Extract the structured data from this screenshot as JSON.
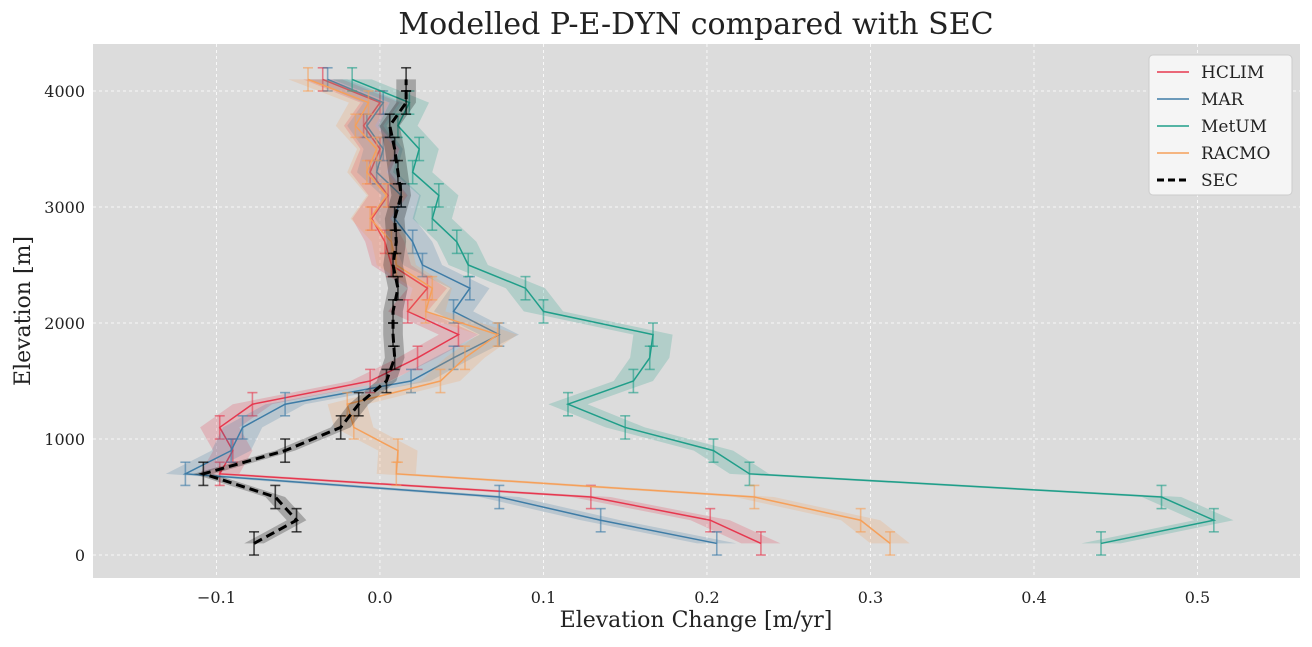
{
  "chart_data": {
    "type": "line",
    "title": "Modelled P-E-DYN compared with SEC",
    "xlabel": "Elevation Change [m/yr]",
    "ylabel": "Elevation [m]",
    "xlim": [
      -0.1755,
      0.5627
    ],
    "ylim": [
      -198,
      4405
    ],
    "xticks": [
      -0.1,
      0.0,
      0.1,
      0.2,
      0.3,
      0.4,
      0.5
    ],
    "xtick_labels": [
      "−0.1",
      "0.0",
      "0.1",
      "0.2",
      "0.3",
      "0.4",
      "0.5"
    ],
    "yticks": [
      0,
      1000,
      2000,
      3000,
      4000
    ],
    "ytick_labels": [
      "0",
      "1000",
      "2000",
      "3000",
      "4000"
    ],
    "grid": true,
    "legend_position": "top-right",
    "elevation_error": 100,
    "elevations": [
      100,
      300,
      500,
      700,
      900,
      1100,
      1300,
      1500,
      1700,
      1900,
      2100,
      2300,
      2500,
      2700,
      2900,
      3100,
      3300,
      3500,
      3700,
      3900,
      4100
    ],
    "series": [
      {
        "name": "HCLIM",
        "color": "#e6384f",
        "dashed": false,
        "band": 0.012,
        "values": [
          0.233,
          0.202,
          0.129,
          -0.098,
          -0.09,
          -0.098,
          -0.078,
          -0.006,
          0.023,
          0.048,
          0.017,
          0.029,
          0.007,
          0.003,
          -0.005,
          0.005,
          -0.006,
          0.0,
          -0.01,
          0.0,
          -0.035
        ]
      },
      {
        "name": "MAR",
        "color": "#3e7ca6",
        "dashed": false,
        "band": 0.012,
        "values": [
          0.206,
          0.135,
          0.073,
          -0.119,
          -0.091,
          -0.084,
          -0.058,
          0.019,
          0.045,
          0.073,
          0.045,
          0.055,
          0.026,
          0.02,
          0.009,
          0.013,
          -0.002,
          0.002,
          -0.008,
          0.002,
          -0.032
        ]
      },
      {
        "name": "MetUM",
        "color": "#1f9e89",
        "dashed": false,
        "band": 0.012,
        "values": [
          0.441,
          0.51,
          0.478,
          0.226,
          0.204,
          0.15,
          0.115,
          0.155,
          0.165,
          0.167,
          0.1,
          0.089,
          0.054,
          0.047,
          0.032,
          0.036,
          0.02,
          0.024,
          0.011,
          0.018,
          -0.017
        ]
      },
      {
        "name": "RACMO",
        "color": "#f5a05a",
        "dashed": false,
        "band": 0.012,
        "values": [
          0.312,
          0.294,
          0.229,
          0.01,
          0.011,
          -0.016,
          -0.02,
          0.037,
          0.052,
          0.072,
          0.028,
          0.032,
          0.01,
          0.007,
          -0.006,
          0.004,
          -0.008,
          -0.002,
          -0.015,
          -0.007,
          -0.044
        ]
      },
      {
        "name": "SEC",
        "color": "#000000",
        "dashed": true,
        "band": 0.006,
        "values": [
          -0.077,
          -0.051,
          -0.064,
          -0.108,
          -0.058,
          -0.024,
          -0.013,
          0.004,
          0.009,
          0.008,
          0.008,
          0.011,
          0.008,
          0.01,
          0.009,
          0.013,
          0.011,
          0.009,
          0.006,
          0.016,
          0.016
        ]
      }
    ]
  }
}
